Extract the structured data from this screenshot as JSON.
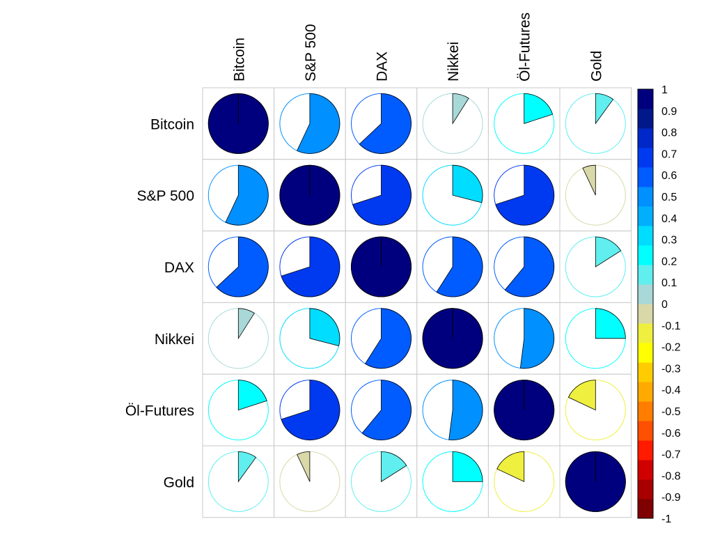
{
  "chart_data": {
    "type": "heatmap",
    "style": "corrplot-pie",
    "labels": [
      "Bitcoin",
      "S&P 500",
      "DAX",
      "Nikkei",
      "Öl-Futures",
      "Gold"
    ],
    "matrix": [
      [
        1.0,
        0.57,
        0.63,
        0.09,
        0.2,
        0.1
      ],
      [
        0.57,
        1.0,
        0.7,
        0.29,
        0.7,
        -0.07
      ],
      [
        0.63,
        0.7,
        1.0,
        0.59,
        0.61,
        0.16
      ],
      [
        0.09,
        0.29,
        0.59,
        1.0,
        0.52,
        0.25
      ],
      [
        0.2,
        0.7,
        0.61,
        0.52,
        1.0,
        -0.18
      ],
      [
        0.1,
        -0.07,
        0.16,
        0.25,
        -0.18,
        1.0
      ]
    ],
    "colorbar": {
      "range": [
        -1,
        1
      ],
      "ticks": [
        "1",
        "0.9",
        "0.8",
        "0.7",
        "0.6",
        "0.5",
        "0.4",
        "0.3",
        "0.2",
        "0.1",
        "0",
        "-0.1",
        "-0.2",
        "-0.3",
        "-0.4",
        "-0.5",
        "-0.6",
        "-0.7",
        "-0.8",
        "-0.9",
        "-1"
      ],
      "colors": [
        "#7F0000",
        "#A80000",
        "#D10000",
        "#FF1A00",
        "#FF4F00",
        "#FF7E00",
        "#FFAA00",
        "#FFCC00",
        "#FFFF00",
        "#EFEF3F",
        "#D8D8A8",
        "#A8D8D8",
        "#60EEEE",
        "#00FFFF",
        "#00DDFF",
        "#00B0FF",
        "#0090FF",
        "#005CFF",
        "#003AF0",
        "#0028C8",
        "#00188A",
        "#00007F"
      ]
    },
    "grid": true,
    "legend": "right"
  }
}
